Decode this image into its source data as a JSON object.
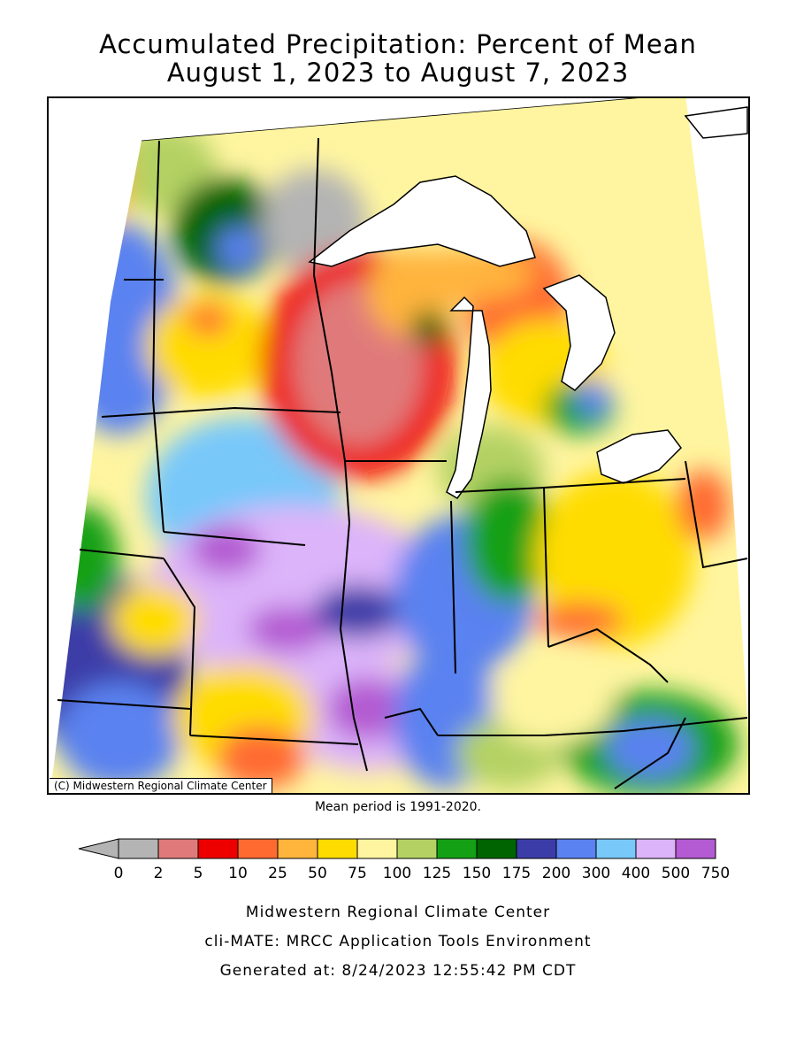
{
  "title_line1": "Accumulated Precipitation: Percent of Mean",
  "title_line2": "August 1, 2023 to August 7, 2023",
  "credit": "(C) Midwestern Regional Climate Center",
  "mean_period": "Mean period is 1991-2020.",
  "legend": {
    "labels": [
      "0",
      "2",
      "5",
      "10",
      "25",
      "50",
      "75",
      "100",
      "125",
      "150",
      "175",
      "200",
      "300",
      "400",
      "500",
      "750"
    ],
    "colors": [
      "#b4b4b4",
      "#e07a7a",
      "#ee0000",
      "#ff6a30",
      "#ffb43c",
      "#ffdc00",
      "#fff5a0",
      "#b4d264",
      "#14a014",
      "#006400",
      "#3c3ca8",
      "#5a82f0",
      "#78c8fa",
      "#dcb4fa",
      "#b45ad2"
    ]
  },
  "footer": {
    "line1": "Midwestern Regional Climate Center",
    "line2": "cli-MATE: MRCC Application Tools Environment",
    "line3": "Generated at: 8/24/2023 12:55:42 PM CDT"
  },
  "colors": {
    "lake_fill": "#ffffff",
    "border": "#000000"
  }
}
